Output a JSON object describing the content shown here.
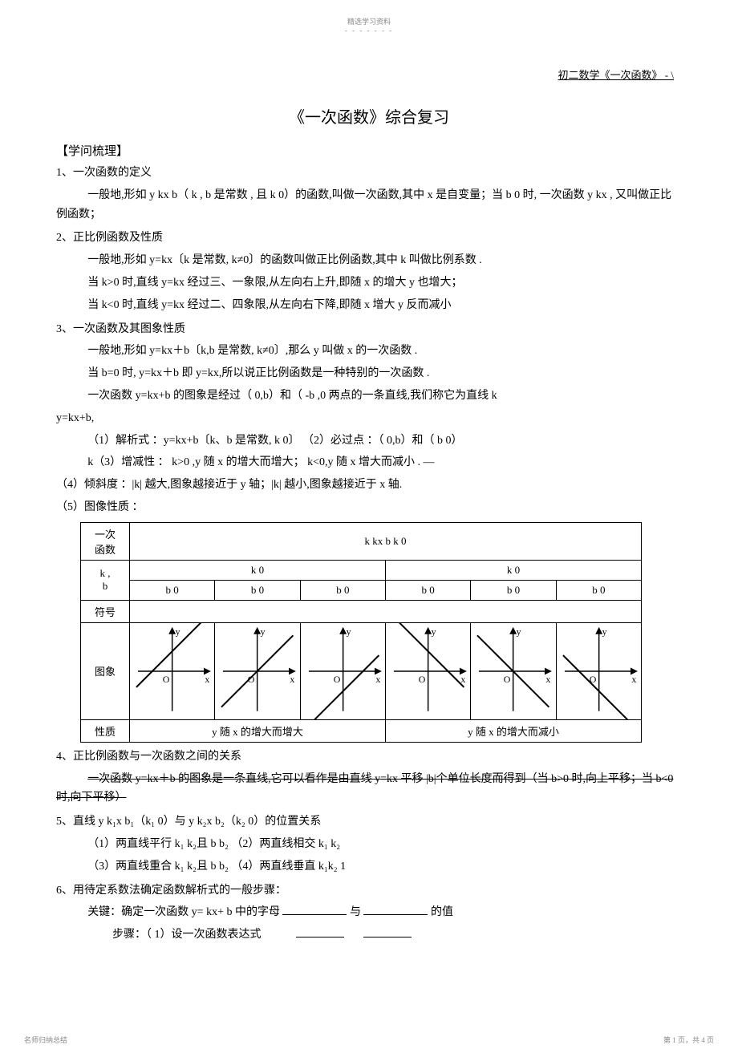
{
  "meta": {
    "top_small": "精选学习资料",
    "top_dashes": "- - - - - - -",
    "header_right": "初二数学《一次函数》    - \\",
    "footer_left": "名师归纳总结",
    "footer_right": "第 1 页，共 4 页"
  },
  "title": "《一次函数》综合复习",
  "outline_head": "【学问梳理】",
  "s1": {
    "head": "1、一次函数的定义",
    "p1": "一般地,形如 y      kx   b（ k , b 是常数 , 且      k   0）的函数,叫做一次函数,其中        x 是自变量；当 b   0 时, 一次函数 y      kx , 又叫做正比例函数；"
  },
  "s2": {
    "head": "2、正比例函数及性质",
    "p1": "一般地,形如 y=kx〔k 是常数, k≠0〕的函数叫做正比例函数,其中       k 叫做比例系数 .",
    "p2": "当 k>0 时,直线 y=kx 经过三、一象限,从左向右上升,即随          x 的增大 y 也增大；",
    "p3": "当 k<0 时,直线 y=kx 经过二、四象限,从左向右下降,即随          x 增大 y 反而减小"
  },
  "s3": {
    "head": "3、一次函数及其图象性质",
    "p1": "一般地,形如 y=kx＋b〔k,b 是常数, k≠0〕,那么 y 叫做 x 的一次函数 .",
    "p2": "当 b=0 时, y=kx＋b 即 y=kx,所以说正比例函数是一种特别的一次函数         .",
    "p3": "一次函数 y=kx+b 的图象是经过（ 0,b）和（ -b ,0   两点的一条直线,我们称它为直线     k",
    "p3b": "y=kx+b,",
    "p4": "（1）解析式 ：y=kx+b〔k、b 是常数, k   0〕       （2）必过点 ：（ 0,b）和（       b 0）",
    "p5": "k（3）增减性 ： k>0 ,y 随 x 的增大而增大； k<0,y 随 x 增大而减小 .                    —",
    "p6": "（4）倾斜度 ：|k| 越大,图象越接近于      y 轴；|k| 越小,图象越接近于      x 轴.",
    "p7": "（5）图像性质 ："
  },
  "table": {
    "func_label": "一次\n函数",
    "func_expr": "k   kx  b k   0",
    "kb_label": "k ,\nb",
    "k_pos": "k   0",
    "k_neg": "k   0",
    "sign_label": "符号",
    "b_headers": [
      "b   0",
      "b   0",
      "b   0",
      "b   0",
      "b   0",
      "b   0"
    ],
    "graph_label": "图象",
    "prop_label": "性质",
    "prop_pos": "y 随 x 的增大而增大",
    "prop_neg": "y 随 x 的增大而减小",
    "axis_y": "y",
    "axis_x": "x",
    "axis_o": "O",
    "graphs": [
      {
        "slope": 1,
        "intercept": 25,
        "line_color": "#000"
      },
      {
        "slope": 1,
        "intercept": 0,
        "line_color": "#000"
      },
      {
        "slope": 1,
        "intercept": -25,
        "line_color": "#000"
      },
      {
        "slope": -1,
        "intercept": 25,
        "line_color": "#000"
      },
      {
        "slope": -1,
        "intercept": 0,
        "line_color": "#000"
      },
      {
        "slope": -1,
        "intercept": -25,
        "line_color": "#000"
      }
    ]
  },
  "s4": {
    "head": "4、正比例函数与一次函数之间的关系",
    "p1": "一次函数 y=kx＋b 的图象是一条直线,它可以看作是由直线         y=kx 平移 |b|个单位长度而得到（当 b>0 时,向上平移；当     b<0 时,向下平移）"
  },
  "s5": {
    "head": "5、直线 y   k₁x  b₁（k₁   0）与 y   k₂x  b₂（k₂   0）的位置关系",
    "p1": "（1）两直线平行      k₁   k₂且 b   b₂       （2）两直线相交       k₁   k₂",
    "p2": "（3）两直线重合      k₁   k₂且 b   b₂       （4）两直线垂直       k₁k₂     1"
  },
  "s6": {
    "head": "6、用待定系数法确定函数解析式的一般步骤：",
    "p1_a": "关键：确定一次函数  y= kx+ b 中的字母",
    "p1_b": "与",
    "p1_c": "的值",
    "p2": "步骤：（ 1）设一次函数表达式"
  }
}
